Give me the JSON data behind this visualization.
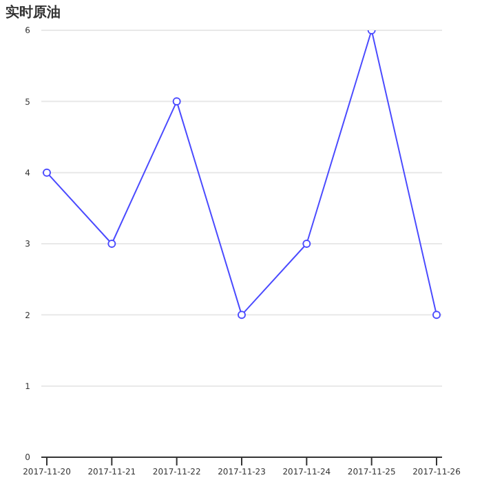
{
  "chart_data": {
    "type": "line",
    "title": "实时原油",
    "categories": [
      "2017-11-20",
      "2017-11-21",
      "2017-11-22",
      "2017-11-23",
      "2017-11-24",
      "2017-11-25",
      "2017-11-26"
    ],
    "series": [
      {
        "color": "#4b4bff",
        "values": [
          4,
          3,
          5,
          2,
          3,
          6,
          2
        ]
      }
    ],
    "ylim": [
      0,
      6
    ],
    "yticks": [
      0,
      1,
      2,
      3,
      4,
      5,
      6
    ],
    "grid": "y",
    "marker": "circle",
    "line_style": "solid",
    "legend": false
  }
}
